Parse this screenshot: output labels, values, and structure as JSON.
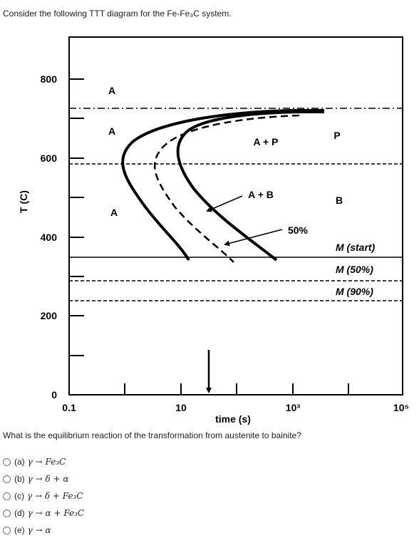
{
  "intro_text": "Consider the following TTT diagram for the Fe-Fe₃C system.",
  "diagram": {
    "y_axis_label": "T (C)",
    "x_axis_label": "time (s)",
    "y_ticks": [
      "800",
      "600",
      "400",
      "200",
      "0"
    ],
    "x_ticks": [
      "0.1",
      "10",
      "10³",
      "10⁵"
    ],
    "regions": {
      "a_top": "A",
      "a_mid": "A",
      "a_low": "A",
      "a_plus_p": "A + P",
      "a_plus_b": "A + B",
      "p": "P",
      "b": "B",
      "fifty": "50%"
    },
    "martensite": [
      "M (start)",
      "M (50%)",
      "M (90%)"
    ]
  },
  "question": "What is the equilibrium reaction of the transformation from austenite to bainite?",
  "options": [
    {
      "key": "(a)",
      "expr": "γ → Fe₃C"
    },
    {
      "key": "(b)",
      "expr": "γ → δ + α"
    },
    {
      "key": "(c)",
      "expr": "γ → δ + Fe₃C"
    },
    {
      "key": "(d)",
      "expr": "γ → α + Fe₃C"
    },
    {
      "key": "(e)",
      "expr": "γ → α"
    }
  ]
}
